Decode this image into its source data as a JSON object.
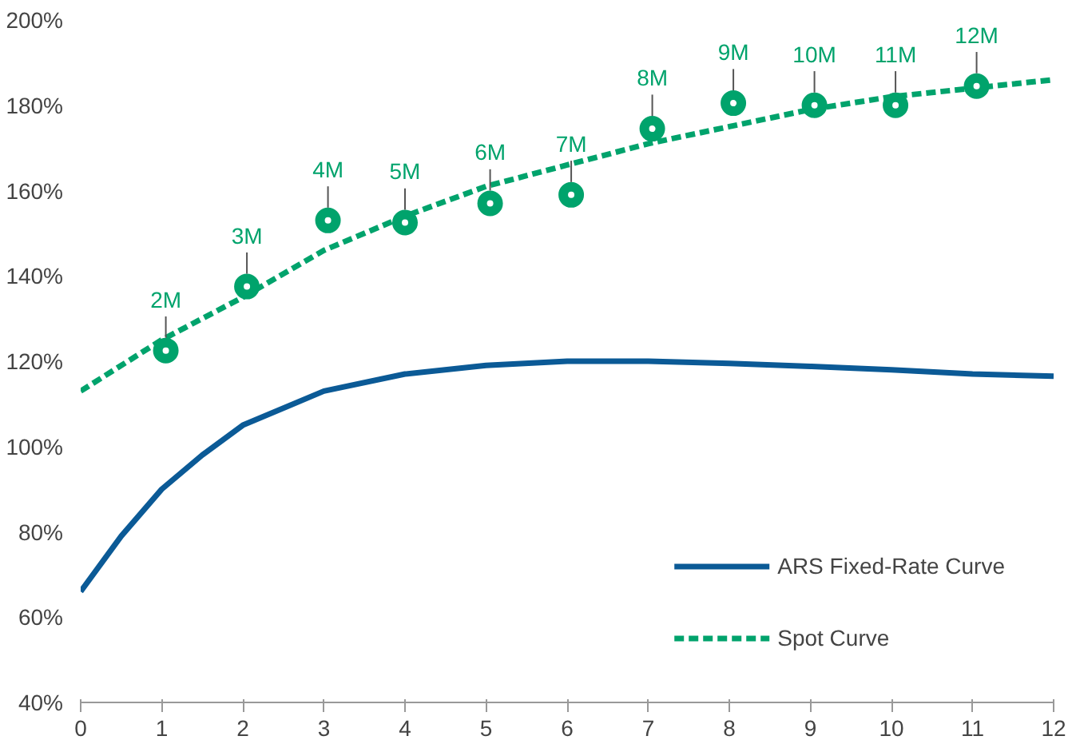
{
  "chart_data": {
    "type": "line",
    "xlim": [
      0,
      12
    ],
    "xticks": [
      0,
      1,
      2,
      3,
      4,
      5,
      6,
      7,
      8,
      9,
      10,
      11,
      12
    ],
    "ylim": [
      40,
      200
    ],
    "yticks": [
      {
        "value": 40,
        "label": "40%"
      },
      {
        "value": 60,
        "label": "60%"
      },
      {
        "value": 80,
        "label": "80%"
      },
      {
        "value": 100,
        "label": "100%"
      },
      {
        "value": 120,
        "label": "120%"
      },
      {
        "value": 140,
        "label": "140%"
      },
      {
        "value": 160,
        "label": "160%"
      },
      {
        "value": 180,
        "label": "180%"
      },
      {
        "value": 200,
        "label": "200%"
      }
    ],
    "grid": false,
    "legend": "bottom right",
    "series": [
      {
        "name": "ARS Fixed-Rate Curve",
        "color": "#0b5a96",
        "line_style": "solid",
        "x": [
          0,
          0.5,
          1,
          1.5,
          2,
          3,
          4,
          5,
          6,
          7,
          8,
          9,
          10,
          11,
          12
        ],
        "values": [
          66,
          79,
          90,
          98,
          105,
          113,
          117,
          119,
          120,
          120,
          119.5,
          118.8,
          118,
          117,
          116.5
        ]
      },
      {
        "name": "Spot Curve",
        "color": "#00a36c",
        "line_style": "dashed",
        "x": [
          0,
          1,
          2,
          3,
          4,
          5,
          6,
          7,
          8,
          9,
          10,
          11,
          12
        ],
        "values": [
          113,
          125,
          135,
          146,
          154,
          161,
          166,
          171,
          175,
          179,
          182,
          184,
          186
        ]
      },
      {
        "type": "scatter",
        "color": "#00a36c",
        "marker": "circle",
        "x": [
          1.05,
          2.05,
          3.05,
          4,
          5.05,
          6.05,
          7.05,
          8.05,
          9.05,
          10.05,
          11.05
        ],
        "values": [
          122.5,
          137.5,
          153,
          152.5,
          157,
          159,
          174.5,
          180.5,
          180,
          180,
          184.5
        ]
      }
    ],
    "annotations": [
      {
        "text": "2M",
        "x": 1.05,
        "y": 122.5
      },
      {
        "text": "3M",
        "x": 2.05,
        "y": 137.5
      },
      {
        "text": "4M",
        "x": 3.05,
        "y": 153
      },
      {
        "text": "5M",
        "x": 4,
        "y": 152.5
      },
      {
        "text": "6M",
        "x": 5.05,
        "y": 157
      },
      {
        "text": "7M",
        "x": 6.05,
        "y": 159
      },
      {
        "text": "8M",
        "x": 7.05,
        "y": 174.5
      },
      {
        "text": "9M",
        "x": 8.05,
        "y": 180.5
      },
      {
        "text": "10M",
        "x": 9.05,
        "y": 180
      },
      {
        "text": "11M",
        "x": 10.05,
        "y": 180
      },
      {
        "text": "12M",
        "x": 11.05,
        "y": 184.5
      }
    ]
  }
}
